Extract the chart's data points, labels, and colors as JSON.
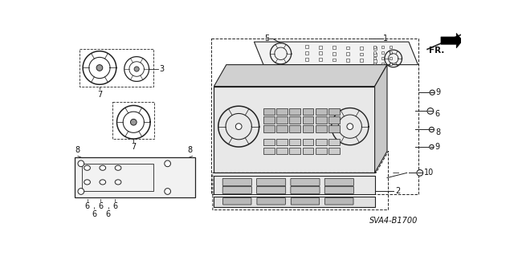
{
  "background_color": "#ffffff",
  "line_color": "#222222",
  "text_color": "#111111",
  "diagram_code": "SVA4-B1700",
  "fr_label": "FR.",
  "gray_fill": "#d0d0d0",
  "light_fill": "#e8e8e8",
  "lighter_fill": "#f2f2f2"
}
